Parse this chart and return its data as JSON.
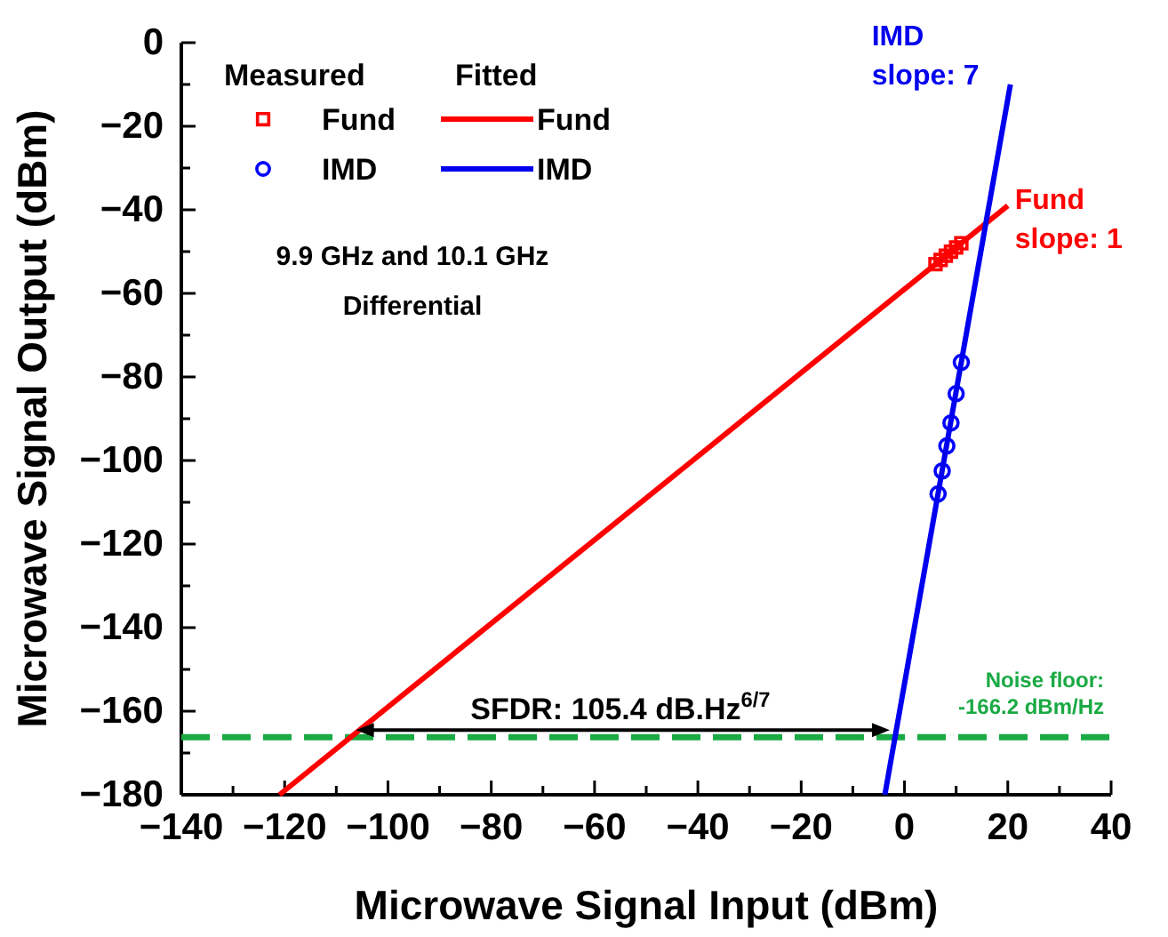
{
  "chart_data": {
    "type": "scatter",
    "xlabel": "Microwave Signal Input (dBm)",
    "ylabel": "Microwave Signal Output (dBm)",
    "xlim": [
      -140,
      40
    ],
    "ylim": [
      -180,
      0
    ],
    "xticks": [
      -140,
      {
        "value": -130,
        "label": null
      },
      -120,
      {
        "value": -110,
        "label": null
      },
      -100,
      {
        "value": -90,
        "label": null
      },
      -80,
      {
        "value": -70,
        "label": null
      },
      -60,
      {
        "value": -50,
        "label": null
      },
      -40,
      {
        "value": -30,
        "label": null
      },
      -20,
      {
        "value": -10,
        "label": null
      },
      0,
      {
        "value": 10,
        "label": null
      },
      20,
      {
        "value": 30,
        "label": null
      },
      40
    ],
    "yticks": [
      -180,
      {
        "value": -170,
        "label": null
      },
      -160,
      {
        "value": -150,
        "label": null
      },
      -140,
      {
        "value": -130,
        "label": null
      },
      -120,
      {
        "value": -110,
        "label": null
      },
      -100,
      {
        "value": -90,
        "label": null
      },
      -80,
      {
        "value": -70,
        "label": null
      },
      -60,
      {
        "value": -50,
        "label": null
      },
      -40,
      {
        "value": -30,
        "label": null
      },
      -20,
      {
        "value": -10,
        "label": null
      },
      0
    ],
    "series": [
      {
        "name": "Fund",
        "marker": "square",
        "color": "#ff0000",
        "x": [
          6,
          7,
          8,
          9,
          10,
          11
        ],
        "values": [
          -53,
          -52,
          -51,
          -50,
          -49,
          -48
        ]
      },
      {
        "name": "IMD",
        "marker": "circle",
        "color": "#0000ff",
        "x": [
          6.5,
          7.3,
          8.2,
          9,
          10,
          11
        ],
        "values": [
          -108,
          -102.5,
          -96.5,
          -91,
          -84,
          -76.5
        ]
      },
      {
        "name": "Fund",
        "type": "line",
        "color": "#ff0000",
        "x": [
          -121,
          20
        ],
        "values": [
          -180,
          -39
        ]
      },
      {
        "name": "IMD",
        "type": "line",
        "color": "#0000ee",
        "x": [
          -3.8,
          20.5
        ],
        "values": [
          -180,
          -10
        ]
      }
    ],
    "ref_lines": [
      {
        "axis": "y",
        "value": -166.2,
        "label": "Noise floor:\n-166.2 dBm/Hz",
        "color": "#1aaa44",
        "line_style": "dashed"
      }
    ],
    "legend": "top left",
    "annotations": [
      "Measured",
      "Fitted",
      "9.9 GHz and 10.1 GHz",
      "Differential",
      {
        "text": "SFDR: 105.4 dB.Hz$^{6/7}$",
        "x": -55,
        "y": -166.2
      },
      {
        "text": "IMD\nslope: 7",
        "x": 20.5,
        "y": -10
      },
      {
        "text": "Fund\nslope: 1",
        "x": 20,
        "y": -39
      }
    ]
  }
}
